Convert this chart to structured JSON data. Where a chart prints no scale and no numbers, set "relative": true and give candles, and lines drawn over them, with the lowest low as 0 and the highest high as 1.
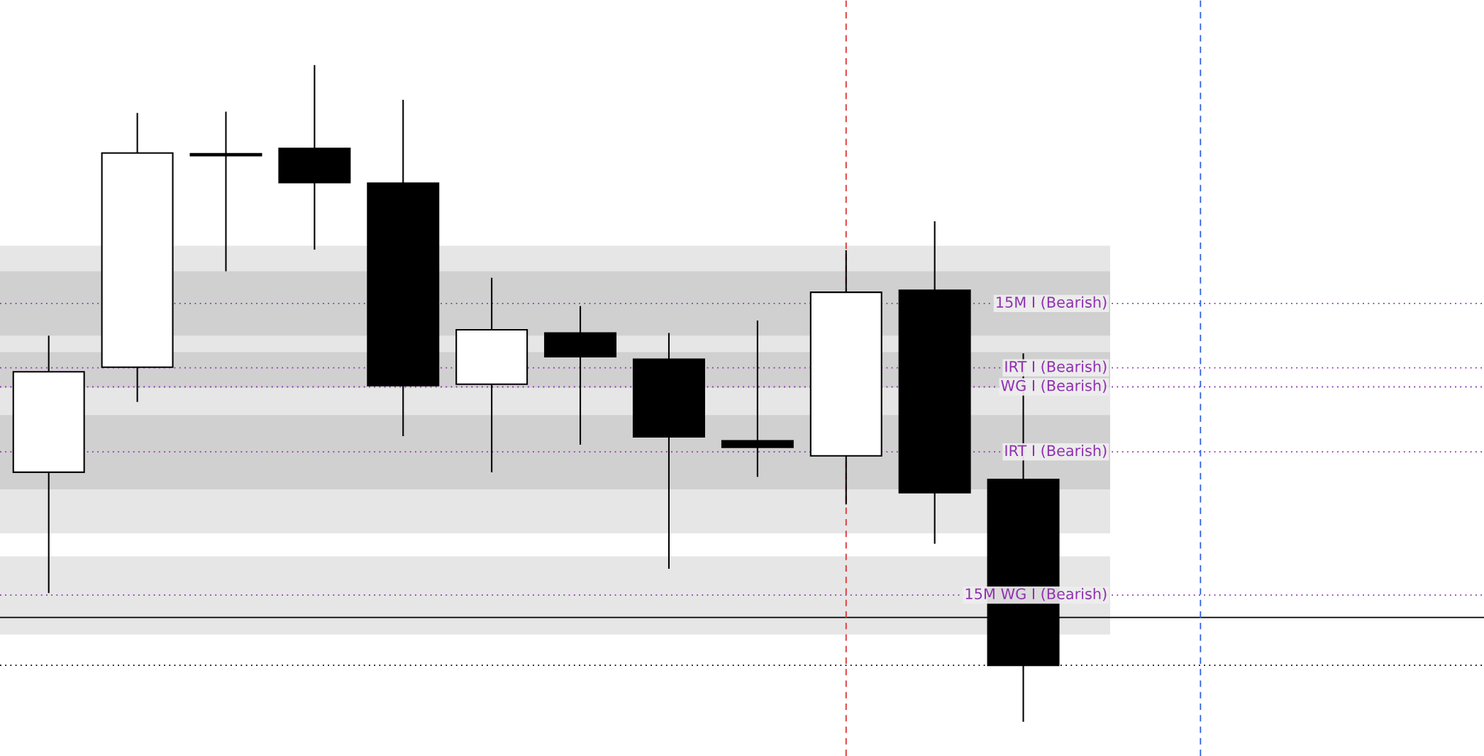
{
  "chart_data": {
    "type": "candlestick",
    "relative": true,
    "categories": [
      null,
      null,
      null,
      null,
      null,
      null,
      null,
      null,
      null,
      null,
      null,
      null
    ],
    "ohlc": [
      [
        0.38,
        0.588,
        0.196,
        0.533
      ],
      [
        0.54,
        0.927,
        0.487,
        0.866
      ],
      [
        0.865,
        0.929,
        0.686,
        0.862
      ],
      [
        0.873,
        1,
        0.719,
        0.821
      ],
      [
        0.82,
        0.947,
        0.435,
        0.512
      ],
      [
        0.514,
        0.676,
        0.38,
        0.597
      ],
      [
        0.592,
        0.633,
        0.422,
        0.556
      ],
      [
        0.552,
        0.592,
        0.233,
        0.434
      ],
      [
        0.428,
        0.611,
        0.373,
        0.418
      ],
      [
        0.405,
        0.718,
        0.331,
        0.654
      ],
      [
        0.657,
        0.762,
        0.271,
        0.349
      ],
      [
        0.369,
        0.561,
        0,
        0.086
      ]
    ],
    "bands": [
      {
        "axis": "y",
        "from": 0.287,
        "to": 0.725,
        "color": "#e6e6e6"
      },
      {
        "axis": "y",
        "from": 0.588,
        "to": 0.686,
        "color": "#d0d0d0"
      },
      {
        "axis": "y",
        "from": 0.509,
        "to": 0.563,
        "color": "#d0d0d0"
      },
      {
        "axis": "y",
        "from": 0.354,
        "to": 0.467,
        "color": "#d0d0d0"
      },
      {
        "axis": "y",
        "from": 0.133,
        "to": 0.252,
        "color": "#e6e6e6"
      }
    ],
    "ref_lines": [
      {
        "axis": "y",
        "value": 0.637,
        "label": "15M I (Bearish)",
        "color": "#9030b0",
        "line_style": "dotted"
      },
      {
        "axis": "y",
        "value": 0.539,
        "label": "IRT I (Bearish)",
        "color": "#9030b0",
        "line_style": "dotted"
      },
      {
        "axis": "y",
        "value": 0.51,
        "label": "WG I (Bearish)",
        "color": "#9030b0",
        "line_style": "dotted"
      },
      {
        "axis": "y",
        "value": 0.411,
        "label": "IRT I (Bearish)",
        "color": "#9030b0",
        "line_style": "dotted"
      },
      {
        "axis": "y",
        "value": 0.193,
        "label": "15M WG I (Bearish)",
        "color": "#9030b0",
        "line_style": "dotted"
      },
      {
        "axis": "y",
        "value": 0.159,
        "color": "#000000",
        "line_style": "solid"
      },
      {
        "axis": "y",
        "value": 0.086,
        "color": "#000000",
        "line_style": "dotted"
      }
    ],
    "legend": false,
    "grid": false
  }
}
